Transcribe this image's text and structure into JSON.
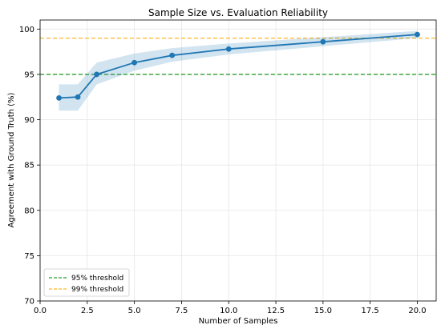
{
  "chart_data": {
    "type": "line",
    "title": "Sample Size vs. Evaluation Reliability",
    "xlabel": "Number of Samples",
    "ylabel": "Agreement with Ground Truth (%)",
    "xlim": [
      0.0,
      21.0
    ],
    "ylim": [
      70,
      101
    ],
    "xticks": [
      0.0,
      2.5,
      5.0,
      7.5,
      10.0,
      12.5,
      15.0,
      17.5,
      20.0
    ],
    "xtick_labels": [
      "0.0",
      "2.5",
      "5.0",
      "7.5",
      "10.0",
      "12.5",
      "15.0",
      "17.5",
      "20.0"
    ],
    "yticks": [
      70,
      75,
      80,
      85,
      90,
      95,
      100
    ],
    "ytick_labels": [
      "70",
      "75",
      "80",
      "85",
      "90",
      "95",
      "100"
    ],
    "grid": true,
    "series": [
      {
        "x": [
          1,
          2,
          3,
          5,
          7,
          10,
          15,
          20
        ],
        "values": [
          92.4,
          92.5,
          95.0,
          96.3,
          97.1,
          97.8,
          98.6,
          99.4
        ],
        "lower": [
          91.0,
          91.0,
          93.9,
          95.4,
          96.4,
          97.2,
          98.1,
          99.0
        ],
        "upper": [
          93.9,
          93.9,
          96.3,
          97.3,
          97.9,
          98.4,
          99.1,
          99.8
        ],
        "color": "#1f77b4",
        "band_color": "#1f77b4"
      }
    ],
    "thresholds": [
      {
        "name": "95% threshold",
        "y": 95,
        "color": "#2ca02c"
      },
      {
        "name": "99% threshold",
        "y": 99,
        "color": "#ffb627"
      }
    ],
    "legend_position": "lower-left"
  }
}
